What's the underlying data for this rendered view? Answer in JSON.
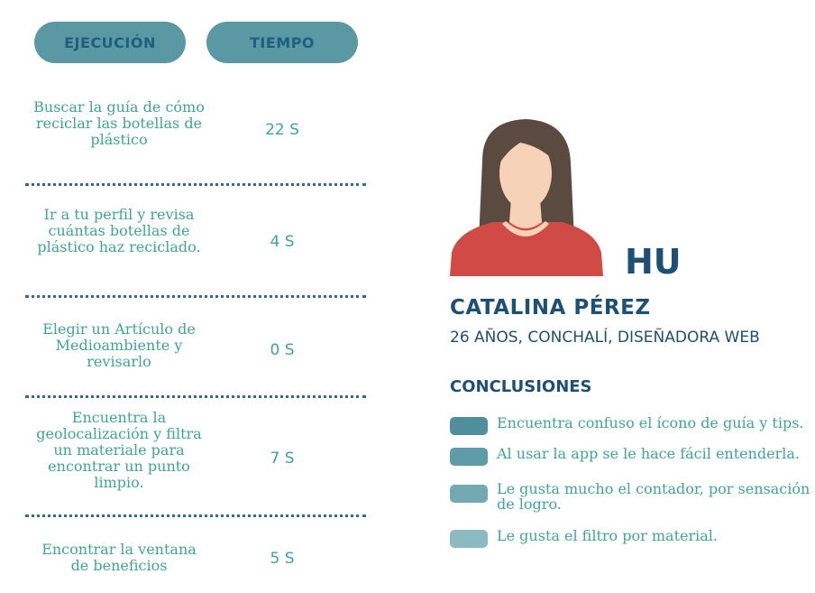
{
  "header": {
    "col1_label": "EJECUCIÓN",
    "col2_label": "TIEMPO"
  },
  "tasks": [
    {
      "text": "Buscar la guía de cómo reciclar las botellas de plástico",
      "time": "22 S"
    },
    {
      "text": "Ir a tu perfil y revisa cuántas botellas de plástico haz reciclado.",
      "time": "4 S"
    },
    {
      "text": "Elegir un Artículo de Medioambiente y revisarlo",
      "time": "0 S"
    },
    {
      "text": "Encuentra la geolocalización y filtra un materiale para encontrar un punto limpio.",
      "time": "7 S"
    },
    {
      "text": "Encontrar la ventana de beneficios",
      "time": "5 S"
    }
  ],
  "persona": {
    "code": "HU",
    "name": "CATALINA PÉREZ",
    "details": "26 AÑOS, CONCHALÍ, DISEÑADORA WEB",
    "avatar_icon": "woman-avatar-icon"
  },
  "conclusions": {
    "title": "CONCLUSIONES",
    "items": [
      {
        "text": "Encuentra confuso el ícono de guía y tips.",
        "color": "#4f8e9b"
      },
      {
        "text": "Al usar la app se le hace fácil entenderla.",
        "color": "#5e9ca7"
      },
      {
        "text": "Le gusta mucho el contador, por sensación de logro.",
        "color": "#72a9b3"
      },
      {
        "text": "Le gusta el filtro por material.",
        "color": "#8bbac2"
      }
    ]
  },
  "colors": {
    "pill_bg": "#5a98a3",
    "dark_blue": "#1e4f74",
    "teal_text": "#3fa595",
    "shirt": "#d04a46",
    "hair": "#5a4a40",
    "skin": "#f6d3b8"
  }
}
